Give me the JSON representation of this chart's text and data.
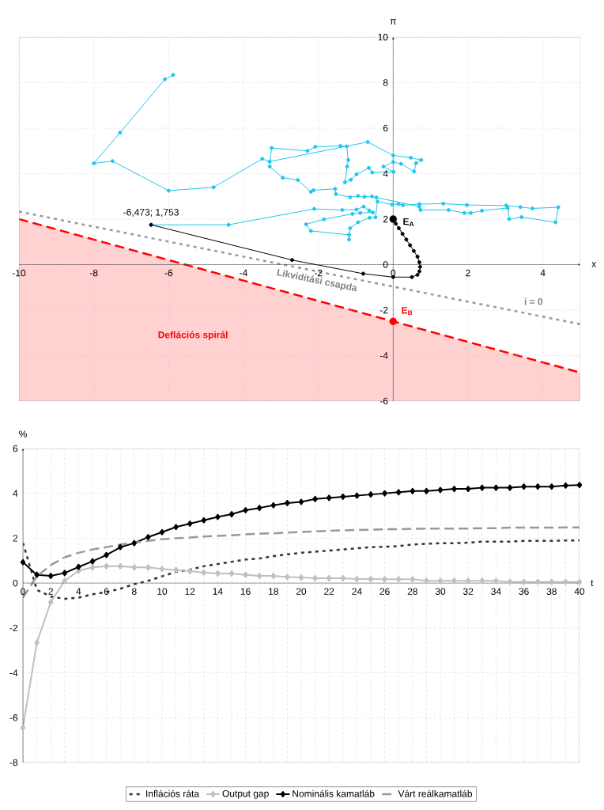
{
  "chart_data": [
    {
      "type": "line",
      "xlabel": "x",
      "ylabel": "π",
      "xlim": [
        -10,
        5
      ],
      "ylim": [
        -6,
        10
      ],
      "xticks": [
        -10,
        -8,
        -6,
        -4,
        -2,
        0,
        2,
        4
      ],
      "yticks": [
        -6,
        -4,
        -2,
        0,
        2,
        4,
        6,
        8,
        10
      ],
      "grid": true,
      "series": [
        {
          "type": "line",
          "color": "#1ec8f0",
          "marker": "circle",
          "x": [
            -6.47,
            -4.4,
            -2.11,
            -1.36,
            -0.98,
            -0.79,
            -0.64,
            -0.54,
            -0.88,
            -1.09,
            -1.85,
            -2.33,
            -2.2,
            -1.18,
            -1.18,
            -1.15,
            -0.94,
            -0.63,
            -0.47,
            -0.42,
            -0.03,
            0.14,
            0.26,
            0.7,
            1.34,
            1.97,
            3.02,
            3.4,
            3.72,
            4.41,
            4.34,
            3.43,
            3.1,
            3.06,
            2.37,
            2.07,
            1.9,
            1.48,
            0.73,
            0.7,
            -0.45,
            -0.57,
            -0.77,
            -0.94,
            -1.15,
            -1.53,
            -1.55,
            -2.13,
            -2.2,
            -2.55,
            -2.95,
            -3.3,
            -3.25,
            -2.29,
            -2.08,
            -1.41,
            -1.24,
            -1.2,
            -1.23,
            -1.29,
            -1.13,
            -0.98,
            -0.65,
            -0.56,
            0.01,
            -0.26,
            0.0,
            0.21,
            0.56,
            0.61,
            0.75,
            0.47,
            0.0,
            -0.68,
            -3.3,
            -3.5,
            -4.8,
            -6.0,
            -7.5,
            -8.0,
            -7.3,
            -6.1,
            -5.88
          ],
          "values": [
            1.75,
            1.75,
            2.45,
            2.4,
            2.42,
            2.55,
            2.38,
            2.29,
            2.27,
            2.23,
            1.99,
            1.77,
            1.48,
            1.31,
            1.1,
            1.6,
            1.86,
            2.06,
            2.08,
            2.77,
            2.64,
            2.67,
            2.61,
            2.66,
            2.68,
            2.62,
            2.6,
            2.53,
            2.47,
            2.52,
            1.86,
            2.09,
            2.0,
            2.49,
            2.37,
            2.27,
            2.27,
            2.4,
            2.4,
            2.55,
            2.95,
            3.0,
            2.98,
            3.02,
            2.96,
            3.1,
            3.33,
            3.27,
            3.2,
            3.72,
            3.82,
            4.31,
            5.13,
            5.0,
            5.18,
            5.22,
            5.2,
            4.6,
            4.31,
            3.62,
            3.73,
            3.97,
            4.25,
            4.05,
            4.08,
            4.31,
            4.51,
            4.43,
            4.09,
            4.46,
            4.6,
            4.7,
            4.8,
            5.39,
            4.53,
            4.65,
            3.4,
            3.25,
            4.55,
            4.45,
            5.8,
            8.15,
            8.34
          ]
        },
        {
          "type": "line",
          "color": "#000000",
          "marker": "circle",
          "x": [
            -6.47,
            -2.7,
            -0.8,
            0.0,
            0.5,
            0.65,
            0.7,
            0.72,
            0.7,
            0.65,
            0.55,
            0.45,
            0.35,
            0.25,
            0.15,
            0.07,
            0.0
          ],
          "values": [
            1.75,
            0.2,
            -0.4,
            -0.55,
            -0.55,
            -0.45,
            -0.3,
            -0.1,
            0.1,
            0.35,
            0.6,
            0.85,
            1.1,
            1.35,
            1.6,
            1.8,
            2.0
          ]
        },
        {
          "type": "line",
          "color": "#999999",
          "line_style": "dotted",
          "marker": "none",
          "x": [
            -10,
            5
          ],
          "values": [
            2.33,
            -2.62
          ]
        },
        {
          "type": "line",
          "color": "#ff0000",
          "line_style": "dashed",
          "marker": "none",
          "x": [
            -10,
            5
          ],
          "values": [
            2.0,
            -4.75
          ],
          "lower": [
            -6,
            -6
          ],
          "upper": [
            2.0,
            -4.75
          ]
        },
        {
          "type": "scatter",
          "color": "#000000",
          "marker": "circle",
          "x": [
            0
          ],
          "values": [
            2.0
          ]
        },
        {
          "type": "scatter",
          "color": "#ff0000",
          "marker": "circle",
          "x": [
            0
          ],
          "values": [
            -2.5
          ]
        }
      ],
      "annotations": [
        {
          "text": "-6,473; 1,753",
          "x": -6.47,
          "y": 1.75
        },
        {
          "text": "E$_{A}$",
          "x": 0,
          "y": 2.0
        },
        {
          "text": "E$_{B}$",
          "x": 0,
          "y": -2.5
        },
        {
          "text": "Likviditási csapda",
          "x": -2.0,
          "y": -0.31
        },
        {
          "text": "i = 0",
          "x": 3.75,
          "y": -2.2
        },
        "Deflációs spirál"
      ]
    },
    {
      "type": "line",
      "xlabel": "t",
      "ylabel": "%",
      "xlim": [
        0,
        40
      ],
      "ylim": [
        -8,
        6
      ],
      "xticks": [
        0,
        2,
        4,
        6,
        8,
        10,
        12,
        14,
        16,
        18,
        20,
        22,
        24,
        26,
        28,
        30,
        32,
        34,
        36,
        38,
        40
      ],
      "yticks": [
        -8,
        -6,
        -4,
        -2,
        0,
        2,
        4,
        6
      ],
      "grid": true,
      "legend": "bottom",
      "x": [
        0,
        1,
        2,
        3,
        4,
        5,
        6,
        7,
        8,
        9,
        10,
        11,
        12,
        13,
        14,
        15,
        16,
        17,
        18,
        19,
        20,
        21,
        22,
        23,
        24,
        25,
        26,
        27,
        28,
        29,
        30,
        31,
        32,
        33,
        34,
        35,
        36,
        37,
        38,
        39,
        40
      ],
      "series": [
        {
          "name": "Inflációs ráta",
          "color": "#333333",
          "line_style": "dotted",
          "marker": "none",
          "values": [
            1.8,
            -0.3,
            -0.6,
            -0.7,
            -0.65,
            -0.5,
            -0.4,
            -0.25,
            -0.05,
            0.1,
            0.3,
            0.5,
            0.6,
            0.75,
            0.85,
            0.95,
            1.05,
            1.1,
            1.2,
            1.28,
            1.35,
            1.4,
            1.45,
            1.5,
            1.55,
            1.6,
            1.62,
            1.65,
            1.72,
            1.75,
            1.78,
            1.78,
            1.8,
            1.85,
            1.85,
            1.85,
            1.88,
            1.88,
            1.88,
            1.9,
            1.9
          ]
        },
        {
          "name": "Output gap",
          "color": "#c0c0c0",
          "line_style": "solid",
          "marker": "diamond",
          "values": [
            -6.45,
            -2.65,
            -0.85,
            0.1,
            0.55,
            0.7,
            0.75,
            0.75,
            0.7,
            0.7,
            0.63,
            0.58,
            0.53,
            0.47,
            0.43,
            0.43,
            0.37,
            0.32,
            0.32,
            0.27,
            0.25,
            0.22,
            0.22,
            0.22,
            0.18,
            0.18,
            0.17,
            0.17,
            0.17,
            0.1,
            0.1,
            0.1,
            0.1,
            0.1,
            0.1,
            0.05,
            0.05,
            0.05,
            0.05,
            0.05,
            0.05
          ]
        },
        {
          "name": "Nominális kamatláb",
          "color": "#000000",
          "line_style": "solid",
          "marker": "diamond",
          "values": [
            0.93,
            0.37,
            0.32,
            0.45,
            0.72,
            0.97,
            1.25,
            1.6,
            1.78,
            2.05,
            2.27,
            2.5,
            2.65,
            2.8,
            2.95,
            3.07,
            3.25,
            3.35,
            3.47,
            3.57,
            3.62,
            3.75,
            3.8,
            3.85,
            3.9,
            3.95,
            4.0,
            4.05,
            4.1,
            4.1,
            4.15,
            4.2,
            4.2,
            4.25,
            4.25,
            4.25,
            4.3,
            4.3,
            4.3,
            4.35,
            4.37
          ]
        },
        {
          "name": "Várt reálkamatláb",
          "color": "#999999",
          "line_style": "dashed",
          "marker": "none",
          "values": [
            -0.65,
            0.3,
            0.8,
            1.15,
            1.35,
            1.5,
            1.6,
            1.72,
            1.8,
            1.88,
            1.95,
            2.0,
            2.03,
            2.08,
            2.1,
            2.13,
            2.17,
            2.2,
            2.22,
            2.25,
            2.28,
            2.3,
            2.33,
            2.35,
            2.37,
            2.38,
            2.4,
            2.4,
            2.42,
            2.43,
            2.43,
            2.43,
            2.43,
            2.45,
            2.45,
            2.47,
            2.47,
            2.47,
            2.47,
            2.48,
            2.48
          ]
        }
      ]
    }
  ]
}
